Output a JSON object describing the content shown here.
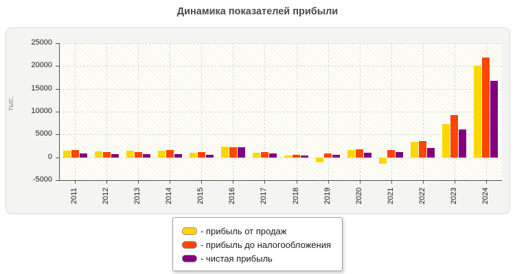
{
  "chart_data": {
    "type": "bar",
    "title": "Динамика показателей прибыли",
    "ylabel": "тыс.",
    "ylim": [
      -5000,
      25000
    ],
    "ytick_step": 5000,
    "grid": true,
    "legend_position": "bottom",
    "plot_background": "cream diagonal hatch",
    "categories": [
      "2011",
      "2012",
      "2013",
      "2014",
      "2015",
      "2016",
      "2017",
      "2018",
      "2019",
      "2020",
      "2021",
      "2022",
      "2023",
      "2024"
    ],
    "series": [
      {
        "name": "прибыль от продаж",
        "color": "#ffd700",
        "values": [
          1400,
          1300,
          1500,
          1450,
          1000,
          2350,
          1000,
          350,
          -1150,
          1550,
          -1400,
          3400,
          7300,
          20000
        ]
      },
      {
        "name": "прибыль до налогообложения",
        "color": "#ff4500",
        "values": [
          1550,
          1200,
          1200,
          1550,
          1150,
          2200,
          1100,
          500,
          850,
          1700,
          1600,
          3600,
          9300,
          21800
        ]
      },
      {
        "name": "чистая прибыль",
        "color": "#800080",
        "values": [
          900,
          700,
          750,
          700,
          550,
          2150,
          900,
          400,
          550,
          1000,
          1100,
          2100,
          6100,
          16800
        ]
      }
    ]
  },
  "legend": {
    "items": [
      {
        "label": "- прибыль от продаж"
      },
      {
        "label": "- прибыль до налогообложения"
      },
      {
        "label": "- чистая прибыль"
      }
    ]
  }
}
